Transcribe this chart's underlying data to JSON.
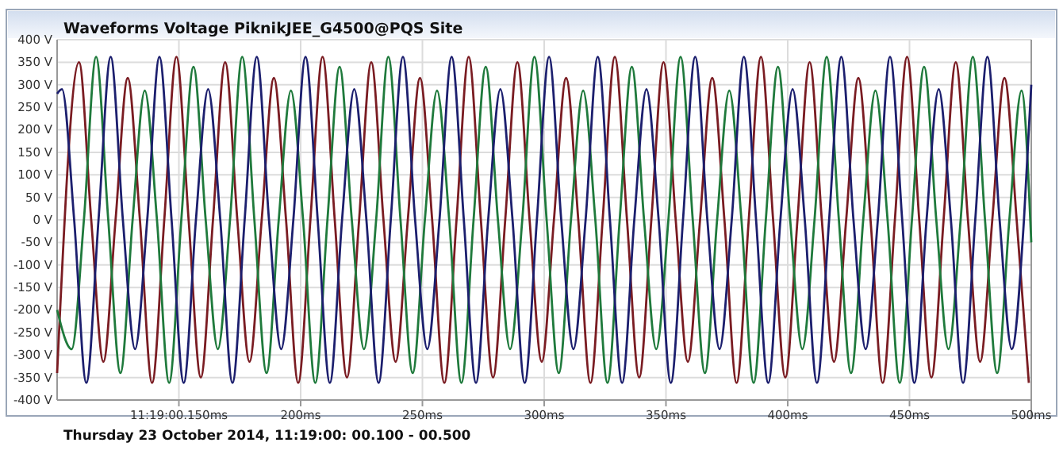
{
  "chart_data": {
    "type": "line",
    "title": "Waveforms Voltage PiknikJEE_G4500@PQS Site",
    "xlabel": "Thursday 23 October 2014, 11:19:00: 00.100 - 00.500",
    "xlim": [
      100,
      500
    ],
    "xticks": [
      {
        "value": 150,
        "label": "11:19:00.150ms"
      },
      {
        "value": 200,
        "label": "200ms"
      },
      {
        "value": 250,
        "label": "250ms"
      },
      {
        "value": 300,
        "label": "300ms"
      },
      {
        "value": 350,
        "label": "350ms"
      },
      {
        "value": 400,
        "label": "400ms"
      },
      {
        "value": 450,
        "label": "450ms"
      },
      {
        "value": 500,
        "label": "500ms"
      }
    ],
    "ylim": [
      -400,
      400
    ],
    "yticks": [
      {
        "value": 400,
        "label": "400 V"
      },
      {
        "value": 350,
        "label": "350 V"
      },
      {
        "value": 300,
        "label": "300 V"
      },
      {
        "value": 250,
        "label": "250 V"
      },
      {
        "value": 200,
        "label": "200 V"
      },
      {
        "value": 150,
        "label": "150 V"
      },
      {
        "value": 100,
        "label": "100 V"
      },
      {
        "value": 50,
        "label": "50 V"
      },
      {
        "value": 0,
        "label": "0 V"
      },
      {
        "value": -50,
        "label": "-50 V"
      },
      {
        "value": -100,
        "label": "-100 V"
      },
      {
        "value": -150,
        "label": "-150 V"
      },
      {
        "value": -200,
        "label": "-200 V"
      },
      {
        "value": -250,
        "label": "-250 V"
      },
      {
        "value": -300,
        "label": "-300 V"
      },
      {
        "value": -350,
        "label": "-350 V"
      },
      {
        "value": -400,
        "label": "-400 V"
      }
    ],
    "grid": true,
    "marker": "none",
    "line_style": "solid",
    "series": [
      {
        "color": "#7a1c22",
        "x": [
          100,
          109,
          114,
          119,
          124,
          129,
          134,
          139,
          144,
          149,
          154,
          159,
          164,
          169,
          174,
          179,
          184,
          189,
          194,
          199,
          204,
          209,
          214,
          219,
          224,
          229,
          234,
          239,
          244,
          249,
          254,
          259,
          264,
          269,
          274,
          279,
          284,
          289,
          294,
          299,
          304,
          309,
          314,
          319,
          324,
          329,
          334,
          339,
          344,
          349,
          354,
          359,
          364,
          369,
          374,
          379,
          384,
          389,
          394,
          399,
          404,
          409,
          414,
          419,
          424,
          429,
          434,
          439,
          444,
          449,
          454,
          459,
          464,
          469,
          474,
          479,
          484,
          489,
          494,
          499
        ],
        "values": [
          -340,
          350,
          0,
          -315,
          0,
          315,
          0,
          -362,
          0,
          362,
          0,
          -350,
          0,
          350,
          0,
          -315,
          0,
          315,
          0,
          -362,
          0,
          362,
          0,
          -350,
          0,
          350,
          0,
          -315,
          0,
          315,
          0,
          -362,
          0,
          362,
          0,
          -350,
          0,
          350,
          0,
          -315,
          0,
          315,
          0,
          -362,
          0,
          362,
          0,
          -350,
          0,
          350,
          0,
          -315,
          0,
          315,
          0,
          -362,
          0,
          362,
          0,
          -350,
          0,
          350,
          0,
          -315,
          0,
          315,
          0,
          -362,
          0,
          362,
          0,
          -350,
          0,
          350,
          0,
          -315,
          0,
          315,
          0,
          -362
        ]
      },
      {
        "color": "#1f7a3c",
        "x": [
          100,
          106,
          111,
          116,
          121,
          126,
          131,
          136,
          141,
          146,
          151,
          156,
          161,
          166,
          171,
          176,
          181,
          186,
          191,
          196,
          201,
          206,
          211,
          216,
          221,
          226,
          231,
          236,
          241,
          246,
          251,
          256,
          261,
          266,
          271,
          276,
          281,
          286,
          291,
          296,
          301,
          306,
          311,
          316,
          321,
          326,
          331,
          336,
          341,
          346,
          351,
          356,
          361,
          366,
          371,
          376,
          381,
          386,
          391,
          396,
          401,
          406,
          411,
          416,
          421,
          426,
          431,
          436,
          441,
          446,
          451,
          456,
          461,
          466,
          471,
          476,
          481,
          486,
          491,
          496,
          500
        ],
        "values": [
          -200,
          -287,
          0,
          362,
          0,
          -340,
          0,
          287,
          0,
          -362,
          0,
          340,
          0,
          -287,
          0,
          362,
          0,
          -340,
          0,
          287,
          0,
          -362,
          0,
          340,
          0,
          -287,
          0,
          362,
          0,
          -340,
          0,
          287,
          0,
          -362,
          0,
          340,
          0,
          -287,
          0,
          362,
          0,
          -340,
          0,
          287,
          0,
          -362,
          0,
          340,
          0,
          -287,
          0,
          362,
          0,
          -340,
          0,
          287,
          0,
          -362,
          0,
          340,
          0,
          -287,
          0,
          362,
          0,
          -340,
          0,
          287,
          0,
          -362,
          0,
          340,
          0,
          -287,
          0,
          362,
          0,
          -340,
          0,
          287,
          -50
        ]
      },
      {
        "color": "#1c1f6e",
        "x": [
          100,
          102,
          107,
          112,
          117,
          122,
          127,
          132,
          137,
          142,
          147,
          152,
          157,
          162,
          167,
          172,
          177,
          182,
          187,
          192,
          197,
          202,
          207,
          212,
          217,
          222,
          227,
          232,
          237,
          242,
          247,
          252,
          257,
          262,
          267,
          272,
          277,
          282,
          287,
          292,
          297,
          302,
          307,
          312,
          317,
          322,
          327,
          332,
          337,
          342,
          347,
          352,
          357,
          362,
          367,
          372,
          377,
          382,
          387,
          392,
          397,
          402,
          407,
          412,
          417,
          422,
          427,
          432,
          437,
          442,
          447,
          452,
          457,
          462,
          467,
          472,
          477,
          482,
          487,
          492,
          497,
          500
        ],
        "values": [
          280,
          290,
          0,
          -362,
          0,
          362,
          0,
          -287,
          0,
          362,
          0,
          -362,
          0,
          290,
          0,
          -362,
          0,
          362,
          0,
          -287,
          0,
          362,
          0,
          -362,
          0,
          290,
          0,
          -362,
          0,
          362,
          0,
          -287,
          0,
          362,
          0,
          -362,
          0,
          290,
          0,
          -362,
          0,
          362,
          0,
          -287,
          0,
          362,
          0,
          -362,
          0,
          290,
          0,
          -362,
          0,
          362,
          0,
          -287,
          0,
          362,
          0,
          -362,
          0,
          290,
          0,
          -362,
          0,
          362,
          0,
          -287,
          0,
          362,
          0,
          -362,
          0,
          290,
          0,
          -362,
          0,
          362,
          0,
          -287,
          0,
          300
        ]
      }
    ]
  }
}
